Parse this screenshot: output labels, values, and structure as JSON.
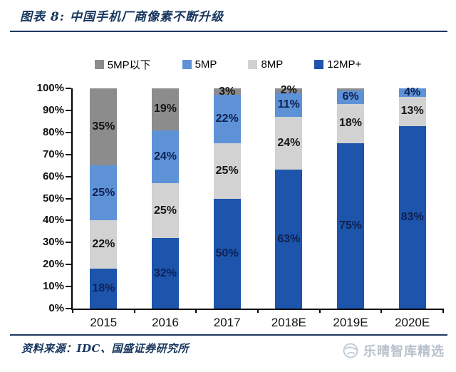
{
  "header": {
    "title": "图表 8: 中国手机厂商像素不断升级"
  },
  "legend": [
    {
      "label": "5MP以下",
      "color": "#8c8c8c"
    },
    {
      "label": "5MP",
      "color": "#5e92d7"
    },
    {
      "label": "8MP",
      "color": "#d2d2d2"
    },
    {
      "label": "12MP+",
      "color": "#1d54ac"
    }
  ],
  "chart_data": {
    "type": "bar",
    "subtype": "stacked-percent-column",
    "title": "中国手机厂商像素不断升级",
    "categories": [
      "2015",
      "2016",
      "2017",
      "2018E",
      "2019E",
      "2020E"
    ],
    "series": [
      {
        "name": "12MP+",
        "color": "#1d54ac",
        "label_color": "#0e2150",
        "values": [
          18,
          32,
          50,
          63,
          75,
          83
        ],
        "labels": [
          "18%",
          "32%",
          "50%",
          "63%",
          "75%",
          "83%"
        ]
      },
      {
        "name": "8MP",
        "color": "#d2d2d2",
        "label_color": "#151515",
        "values": [
          22,
          25,
          25,
          24,
          18,
          13
        ],
        "labels": [
          "22%",
          "25%",
          "25%",
          "24%",
          "18%",
          "13%"
        ]
      },
      {
        "name": "5MP",
        "color": "#5e92d7",
        "label_color": "#0e2150",
        "values": [
          25,
          24,
          22,
          11,
          6,
          4
        ],
        "labels": [
          "25%",
          "24%",
          "22%",
          "11%",
          "6%",
          "4%"
        ]
      },
      {
        "name": "5MP以下",
        "color": "#8c8c8c",
        "label_color": "#151515",
        "values": [
          35,
          19,
          3,
          2,
          1,
          0
        ],
        "labels": [
          "35%",
          "19%",
          "3%",
          "2%",
          "",
          ""
        ]
      }
    ],
    "y_ticks": [
      "0%",
      "10%",
      "20%",
      "30%",
      "40%",
      "50%",
      "60%",
      "70%",
      "80%",
      "90%",
      "100%"
    ],
    "ylim": [
      0,
      100
    ],
    "grid": false,
    "legend_position": "top",
    "accent_navy": "#1f3864"
  },
  "footer": {
    "source": "资料来源：IDC、国盛证券研究所",
    "watermark": "乐晴智库精选"
  }
}
